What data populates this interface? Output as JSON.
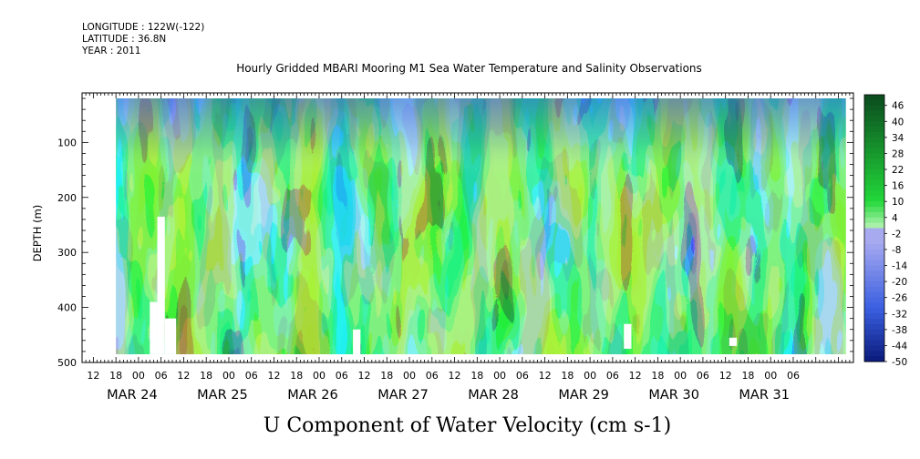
{
  "header": {
    "longitude": "LONGITUDE : 122W(-122)",
    "latitude": "LATITUDE : 36.8N",
    "year": "YEAR : 2011"
  },
  "chart_data": {
    "type": "heatmap",
    "title": "Hourly Gridded MBARI Mooring M1 Sea Water Temperature and Salinity Observations",
    "variable_label": "U Component of Water Velocity (cm s-1)",
    "ylabel": "DEPTH (m)",
    "ylim": [
      500,
      10
    ],
    "y_ticks": [
      100,
      200,
      300,
      400,
      500
    ],
    "x_range_hours": [
      -15,
      190
    ],
    "x_hour_ticks": [
      "12",
      "18",
      "00",
      "06",
      "12",
      "18",
      "00",
      "06",
      "12",
      "18",
      "00",
      "06",
      "12",
      "18",
      "00",
      "06",
      "12",
      "18",
      "00",
      "06",
      "12",
      "18",
      "00",
      "06",
      "12",
      "18",
      "00",
      "06",
      "12",
      "18",
      "00",
      "06"
    ],
    "x_date_labels": [
      "MAR 24",
      "MAR 25",
      "MAR 26",
      "MAR 27",
      "MAR 28",
      "MAR 29",
      "MAR 30",
      "MAR 31"
    ],
    "data_extent": {
      "start_hour": -6,
      "end_hour": 188,
      "top_depth_m": 20,
      "bottom_depth_m": 485
    },
    "colorbar": {
      "labels": [
        "46",
        "40",
        "34",
        "28",
        "22",
        "16",
        "10",
        "4",
        "-2",
        "-8",
        "-14",
        "-20",
        "-26",
        "-32",
        "-38",
        "-44",
        "-50"
      ],
      "min": -50,
      "max": 50,
      "colors": {
        "strong_negative": "#0a1a7a",
        "negative": "#3a5fe0",
        "weak_negative": "#a8aaf0",
        "weak_positive": "#a8f0a8",
        "positive": "#22d83a",
        "strong_positive": "#0b4a1e"
      }
    },
    "missing_blocks": [
      {
        "hour_from": 5,
        "hour_to": 7,
        "depth_from": 235,
        "depth_to": 485
      },
      {
        "hour_from": 7,
        "hour_to": 10,
        "depth_from": 420,
        "depth_to": 485
      },
      {
        "hour_from": 3,
        "hour_to": 5,
        "depth_from": 390,
        "depth_to": 485
      },
      {
        "hour_from": 57,
        "hour_to": 59,
        "depth_from": 440,
        "depth_to": 485
      },
      {
        "hour_from": 129,
        "hour_to": 131,
        "depth_from": 430,
        "depth_to": 475
      },
      {
        "hour_from": 157,
        "hour_to": 159,
        "depth_from": 455,
        "depth_to": 470
      }
    ]
  }
}
